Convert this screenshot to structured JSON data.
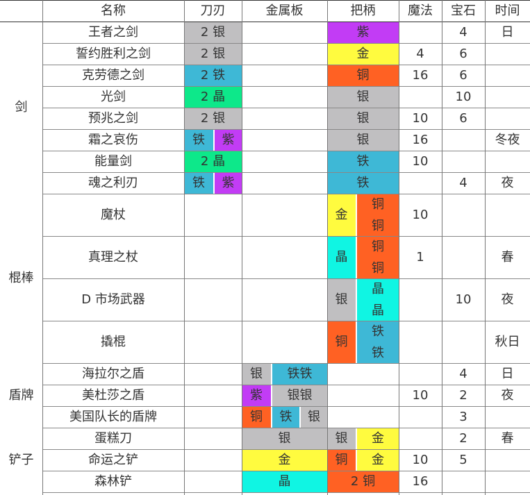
{
  "colors": {
    "银": "#c0bfc1",
    "铁": "#3eb8d6",
    "紫": "#c23cf5",
    "金": "#fffb3f",
    "铜": "#ff6123",
    "绿晶": "#0de88a",
    "晶": "#10f5e3"
  },
  "headers": [
    "",
    "名称",
    "刀刃",
    "金属板",
    "把柄",
    "魔法",
    "宝石",
    "时间"
  ],
  "groups": [
    {
      "label": "剑",
      "rows": [
        {
          "name": "王者之剑",
          "blade": [
            {
              "t": "2 银",
              "c": "#c0bfc1"
            }
          ],
          "plate": [],
          "handle": [
            {
              "t": "紫",
              "c": "#c23cf5"
            }
          ],
          "magic": "",
          "gem": "4",
          "time": "日"
        },
        {
          "name": "誓约胜利之剑",
          "blade": [
            {
              "t": "2 银",
              "c": "#c0bfc1"
            }
          ],
          "plate": [],
          "handle": [
            {
              "t": "金",
              "c": "#fffb3f"
            }
          ],
          "magic": "4",
          "gem": "6",
          "time": ""
        },
        {
          "name": "克劳德之剑",
          "blade": [
            {
              "t": "2 铁",
              "c": "#3eb8d6"
            }
          ],
          "plate": [],
          "handle": [
            {
              "t": "铜",
              "c": "#ff6123"
            }
          ],
          "magic": "16",
          "gem": "6",
          "time": ""
        },
        {
          "name": "光剑",
          "blade": [
            {
              "t": "2 晶",
              "c": "#0de88a"
            }
          ],
          "plate": [],
          "handle": [
            {
              "t": "银",
              "c": "#c0bfc1"
            }
          ],
          "magic": "",
          "gem": "10",
          "time": ""
        },
        {
          "name": "预兆之剑",
          "blade": [
            {
              "t": "2 银",
              "c": "#c0bfc1"
            }
          ],
          "plate": [],
          "handle": [
            {
              "t": "银",
              "c": "#c0bfc1"
            }
          ],
          "magic": "10",
          "gem": "6",
          "time": ""
        },
        {
          "name": "霜之哀伤",
          "blade": [
            {
              "t": "铁",
              "c": "#3eb8d6"
            },
            {
              "t": "紫",
              "c": "#c23cf5"
            }
          ],
          "plate": [],
          "handle": [
            {
              "t": "银",
              "c": "#c0bfc1"
            }
          ],
          "magic": "16",
          "gem": "",
          "time": "冬夜"
        },
        {
          "name": "能量剑",
          "blade": [
            {
              "t": "2 晶",
              "c": "#0de88a"
            }
          ],
          "plate": [],
          "handle": [
            {
              "t": "铁",
              "c": "#3eb8d6"
            }
          ],
          "magic": "10",
          "gem": "",
          "time": ""
        },
        {
          "name": "魂之利刃",
          "blade": [
            {
              "t": "铁",
              "c": "#3eb8d6"
            },
            {
              "t": "紫",
              "c": "#c23cf5"
            }
          ],
          "plate": [],
          "handle": [
            {
              "t": "铁",
              "c": "#3eb8d6"
            }
          ],
          "magic": "",
          "gem": "4",
          "time": "夜"
        }
      ]
    },
    {
      "label": "棍棒",
      "rows": [
        {
          "name": "魔杖",
          "blade": [],
          "plate": [],
          "handle": [
            {
              "t": "金",
              "c": "#fffb3f"
            },
            {
              "t": "铜\n铜",
              "c": "#ff6123"
            }
          ],
          "magic": "10",
          "gem": "",
          "time": ""
        },
        {
          "name": "真理之杖",
          "blade": [],
          "plate": [],
          "handle": [
            {
              "t": "晶",
              "c": "#10f5e3"
            },
            {
              "t": "铜\n铜",
              "c": "#ff6123"
            }
          ],
          "magic": "1",
          "gem": "",
          "time": "春"
        },
        {
          "name": "D 市场武器",
          "blade": [],
          "plate": [],
          "handle": [
            {
              "t": "银",
              "c": "#c0bfc1"
            },
            {
              "t": "晶\n晶",
              "c": "#10f5e3"
            }
          ],
          "magic": "",
          "gem": "10",
          "time": "夜"
        },
        {
          "name": "撬棍",
          "blade": [],
          "plate": [],
          "handle": [
            {
              "t": "铜",
              "c": "#ff6123"
            },
            {
              "t": "铁\n铁",
              "c": "#3eb8d6"
            }
          ],
          "magic": "",
          "gem": "",
          "time": "秋日"
        }
      ]
    },
    {
      "label": "盾牌",
      "rows": [
        {
          "name": "海拉尔之盾",
          "blade": [],
          "plate": [
            {
              "t": "银",
              "c": "#c0bfc1"
            },
            {
              "t": "铁铁",
              "c": "#3eb8d6"
            }
          ],
          "handle": [],
          "magic": "",
          "gem": "4",
          "time": "日"
        },
        {
          "name": "美杜莎之盾",
          "blade": [],
          "plate": [
            {
              "t": "紫",
              "c": "#c23cf5"
            },
            {
              "t": "银银",
              "c": "#c0bfc1"
            }
          ],
          "handle": [],
          "magic": "10",
          "gem": "2",
          "time": "夜"
        },
        {
          "name": "美国队长的盾牌",
          "blade": [],
          "plate": [
            {
              "t": "铜",
              "c": "#ff6123"
            },
            {
              "t": "铁",
              "c": "#3eb8d6"
            },
            {
              "t": "银",
              "c": "#c0bfc1"
            }
          ],
          "handle": [],
          "magic": "",
          "gem": "3",
          "time": ""
        }
      ]
    },
    {
      "label": "铲子",
      "rows": [
        {
          "name": "蛋糕刀",
          "blade": [],
          "plate": [
            {
              "t": "银",
              "c": "#c0bfc1"
            }
          ],
          "handle": [
            {
              "t": "银",
              "c": "#c0bfc1"
            },
            {
              "t": "金",
              "c": "#fffb3f"
            }
          ],
          "magic": "",
          "gem": "2",
          "time": "春"
        },
        {
          "name": "命运之铲",
          "blade": [],
          "plate": [
            {
              "t": "金",
              "c": "#fffb3f"
            }
          ],
          "handle": [
            {
              "t": "铜",
              "c": "#ff6123"
            },
            {
              "t": "金",
              "c": "#fffb3f"
            }
          ],
          "magic": "10",
          "gem": "5",
          "time": ""
        },
        {
          "name": "森林铲",
          "blade": [],
          "plate": [
            {
              "t": "晶",
              "c": "#10f5e3"
            }
          ],
          "handle": [
            {
              "t": "2 铜",
              "c": "#ff6123"
            }
          ],
          "magic": "16",
          "gem": "",
          "time": ""
        }
      ]
    }
  ]
}
